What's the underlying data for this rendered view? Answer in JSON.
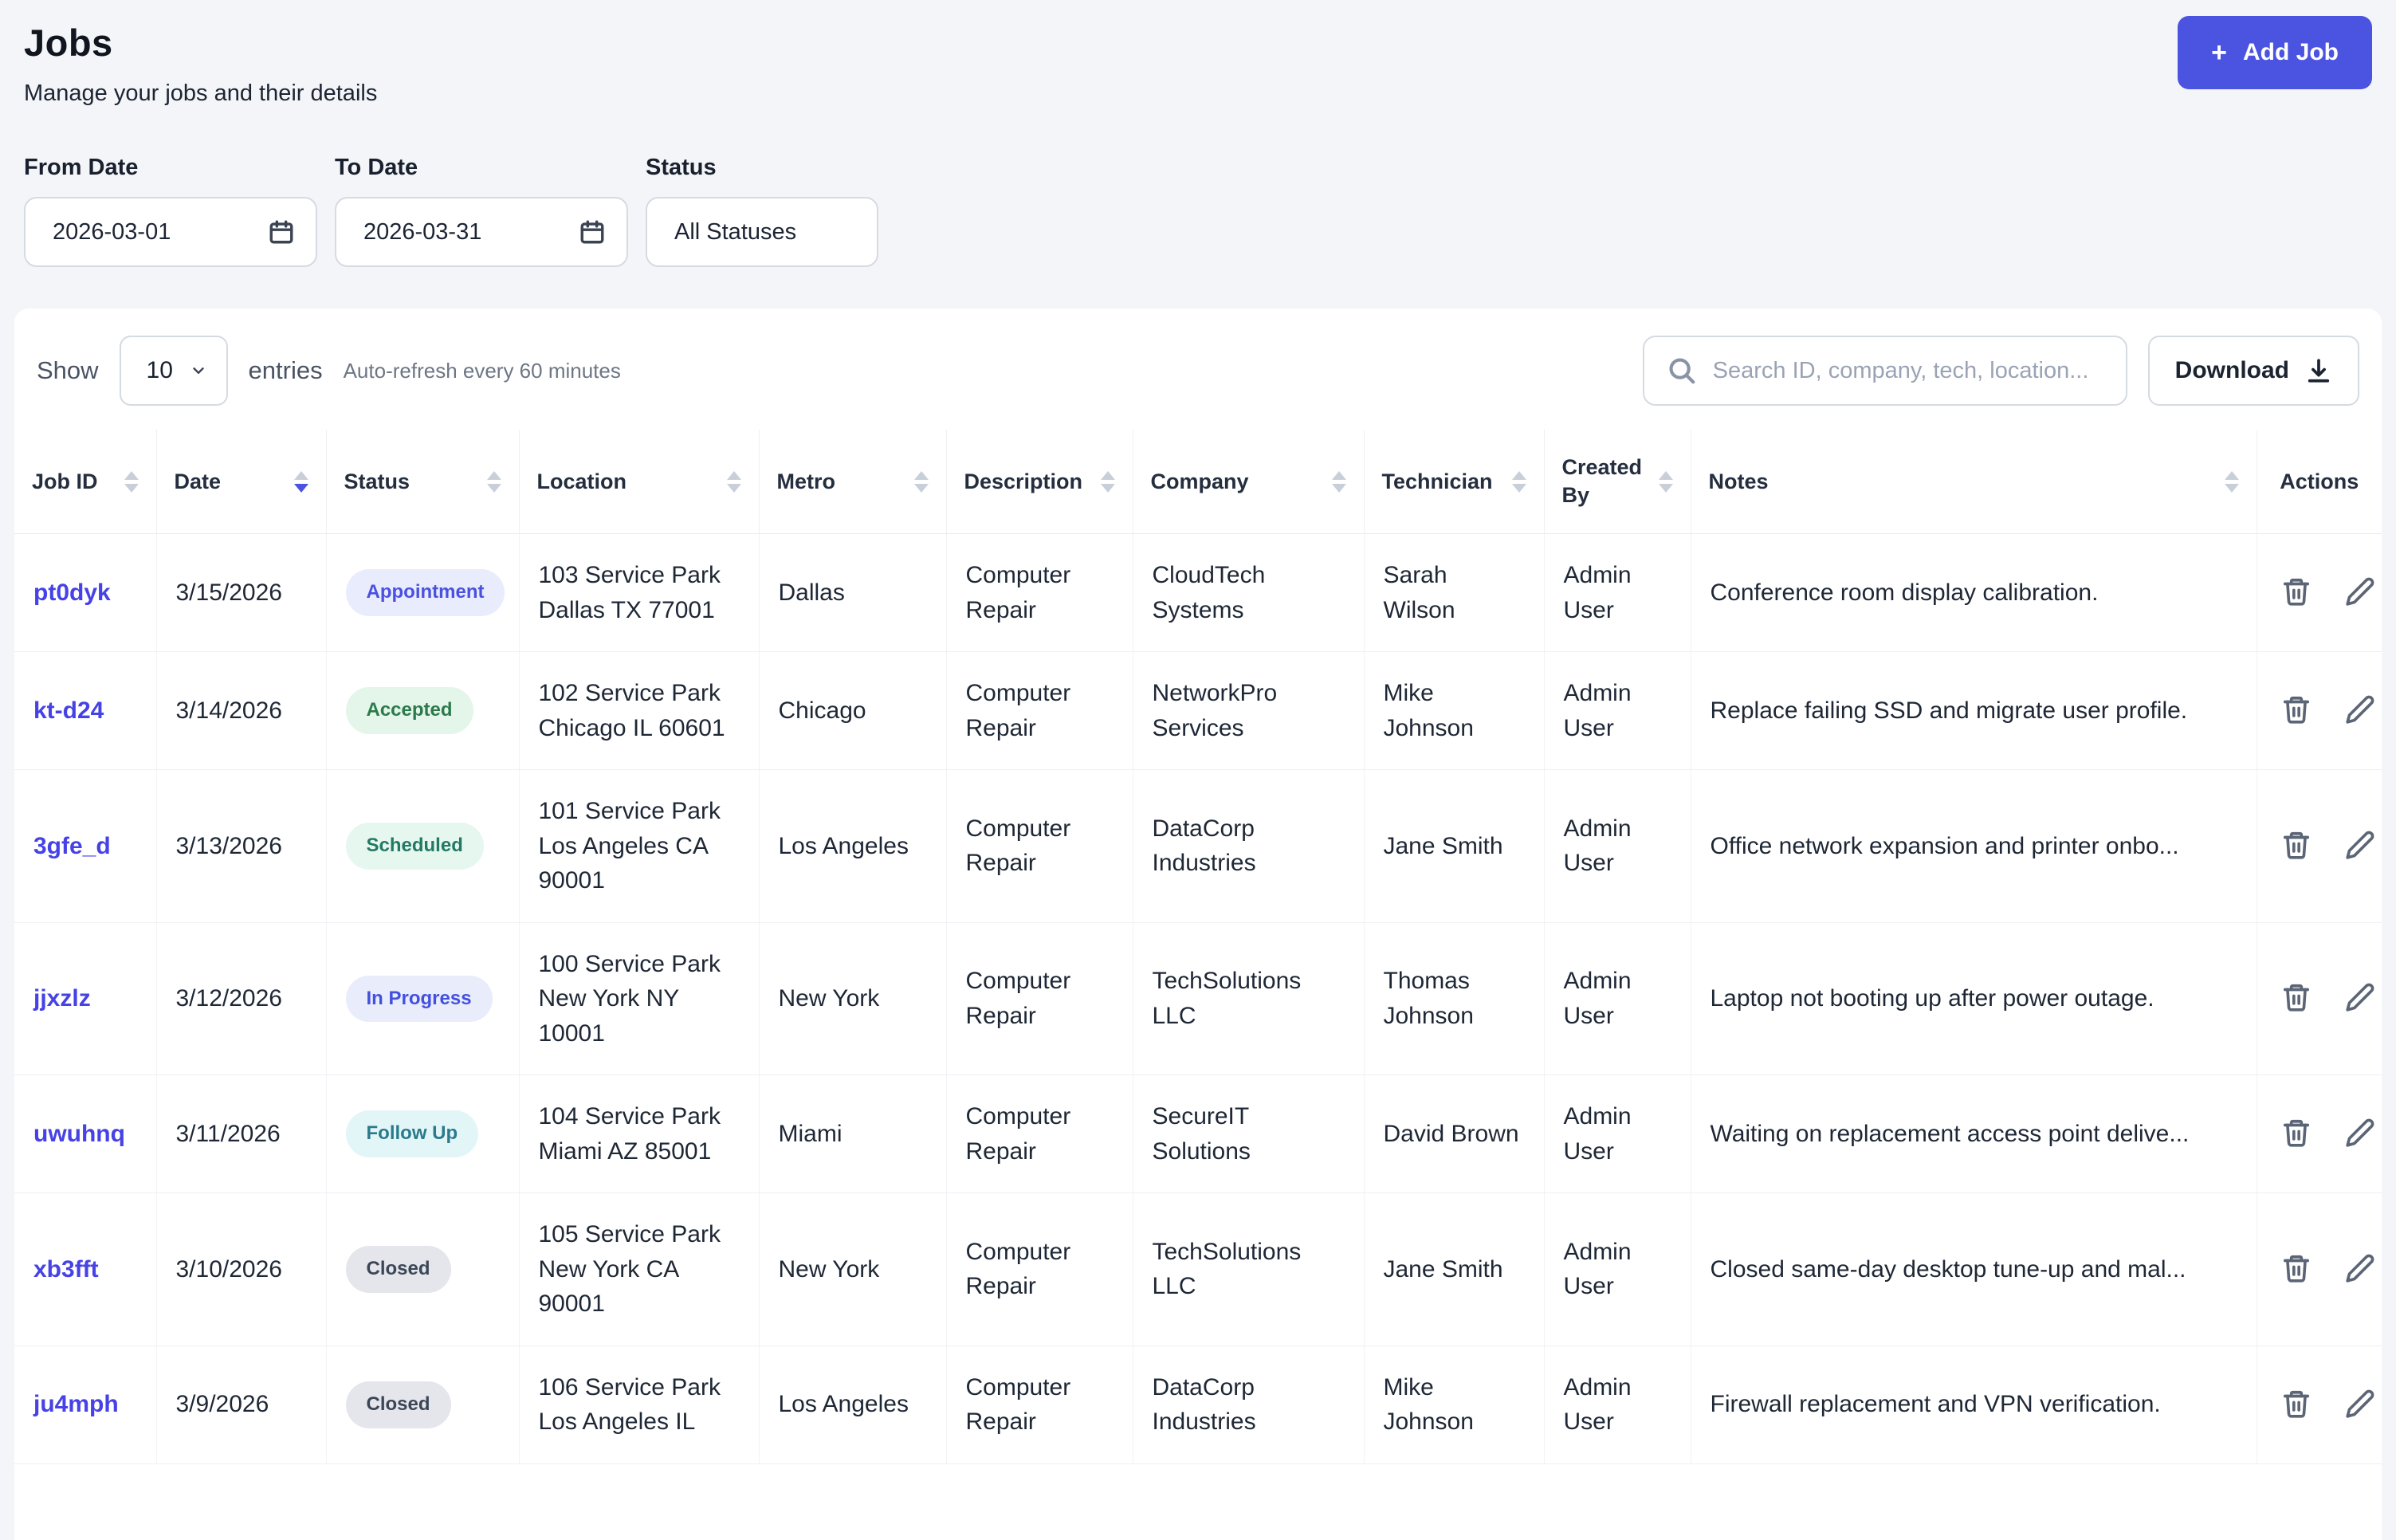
{
  "header": {
    "title": "Jobs",
    "subtitle": "Manage your jobs and their details",
    "add_job_plus": "+",
    "add_job_label": "Add Job"
  },
  "filters": {
    "from_date": {
      "label": "From Date",
      "value": "2026-03-01"
    },
    "to_date": {
      "label": "To Date",
      "value": "2026-03-31"
    },
    "status": {
      "label": "Status",
      "value": "All Statuses"
    }
  },
  "controls": {
    "show_label": "Show",
    "page_size": "10",
    "entries_label": "entries",
    "auto_refresh": "Auto-refresh every 60 minutes",
    "search_placeholder": "Search ID, company, tech, location...",
    "download_label": "Download"
  },
  "colors": {
    "accent": "#4b53e1",
    "page_background": "#f4f5f8",
    "job_link": "#4642e5"
  },
  "status_colors": {
    "Appointment": {
      "bg": "#e9ecfc",
      "fg": "#4a51e0"
    },
    "Accepted": {
      "bg": "#e4f5ea",
      "fg": "#2c7a4b"
    },
    "Scheduled": {
      "bg": "#e6f7f0",
      "fg": "#237a63"
    },
    "In Progress": {
      "bg": "#e8ecfb",
      "fg": "#4350de"
    },
    "Follow Up": {
      "bg": "#e2f6f8",
      "fg": "#2b7a8c"
    },
    "Closed": {
      "bg": "#e4e6eb",
      "fg": "#3c4657"
    }
  },
  "table": {
    "sort": {
      "column": "Date",
      "direction": "desc"
    },
    "columns": [
      {
        "label": "Job ID",
        "sortable": true
      },
      {
        "label": "Date",
        "sortable": true
      },
      {
        "label": "Status",
        "sortable": true
      },
      {
        "label": "Location",
        "sortable": true
      },
      {
        "label": "Metro",
        "sortable": true
      },
      {
        "label": "Description",
        "sortable": true
      },
      {
        "label": "Company",
        "sortable": true
      },
      {
        "label": "Technician",
        "sortable": true
      },
      {
        "label": "Created By",
        "sortable": true
      },
      {
        "label": "Notes",
        "sortable": true
      },
      {
        "label": "Actions",
        "sortable": false
      }
    ],
    "rows": [
      {
        "job_id": "pt0dyk",
        "date": "3/15/2026",
        "status": "Appointment",
        "location": "103 Service Park Dallas TX 77001",
        "metro": "Dallas",
        "description": "Computer Repair",
        "company": "CloudTech Systems",
        "technician": "Sarah Wilson",
        "created_by": "Admin User",
        "notes": "Conference room display calibration."
      },
      {
        "job_id": "kt-d24",
        "date": "3/14/2026",
        "status": "Accepted",
        "location": "102 Service Park Chicago IL 60601",
        "metro": "Chicago",
        "description": "Computer Repair",
        "company": "NetworkPro Services",
        "technician": "Mike Johnson",
        "created_by": "Admin User",
        "notes": "Replace failing SSD and migrate user profile."
      },
      {
        "job_id": "3gfe_d",
        "date": "3/13/2026",
        "status": "Scheduled",
        "location": "101 Service Park Los Angeles CA 90001",
        "metro": "Los Angeles",
        "description": "Computer Repair",
        "company": "DataCorp Industries",
        "technician": "Jane Smith",
        "created_by": "Admin User",
        "notes": "Office network expansion and printer onbo..."
      },
      {
        "job_id": "jjxzlz",
        "date": "3/12/2026",
        "status": "In Progress",
        "location": "100 Service Park New York NY 10001",
        "metro": "New York",
        "description": "Computer Repair",
        "company": "TechSolutions LLC",
        "technician": "Thomas Johnson",
        "created_by": "Admin User",
        "notes": "Laptop not booting up after power outage."
      },
      {
        "job_id": "uwuhnq",
        "date": "3/11/2026",
        "status": "Follow Up",
        "location": "104 Service Park Miami AZ 85001",
        "metro": "Miami",
        "description": "Computer Repair",
        "company": "SecureIT Solutions",
        "technician": "David Brown",
        "created_by": "Admin User",
        "notes": "Waiting on replacement access point delive..."
      },
      {
        "job_id": "xb3fft",
        "date": "3/10/2026",
        "status": "Closed",
        "location": "105 Service Park New York CA 90001",
        "metro": "New York",
        "description": "Computer Repair",
        "company": "TechSolutions LLC",
        "technician": "Jane Smith",
        "created_by": "Admin User",
        "notes": "Closed same-day desktop tune-up and mal..."
      },
      {
        "job_id": "ju4mph",
        "date": "3/9/2026",
        "status": "Closed",
        "location": "106 Service Park Los Angeles IL",
        "metro": "Los Angeles",
        "description": "Computer Repair",
        "company": "DataCorp Industries",
        "technician": "Mike Johnson",
        "created_by": "Admin User",
        "notes": "Firewall replacement and VPN verification."
      }
    ]
  }
}
